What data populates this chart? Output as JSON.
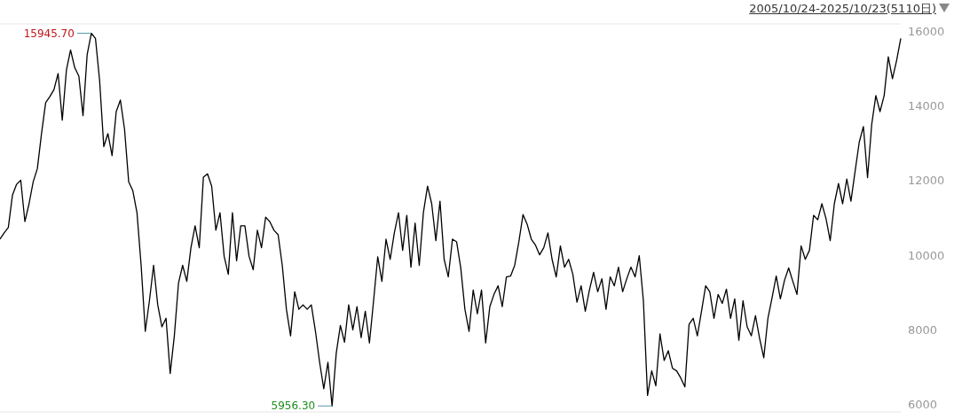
{
  "chart_data": {
    "type": "line",
    "title": "2005/10/24-2025/10/23(5110日)",
    "categories": [
      null,
      null,
      null,
      null,
      null,
      null,
      null,
      null,
      null,
      null,
      null,
      null,
      null,
      null,
      null,
      null,
      null,
      null,
      null,
      null,
      null,
      null,
      null,
      null,
      null,
      null,
      null,
      null,
      null,
      null,
      null,
      null,
      null,
      null,
      null,
      null,
      null,
      null,
      null,
      null,
      null,
      null,
      null,
      null,
      null,
      null,
      null,
      null,
      null,
      null,
      null,
      null,
      null,
      null,
      null,
      null,
      null,
      null,
      null,
      null,
      null,
      null,
      null,
      null,
      null,
      null,
      null,
      null,
      null,
      null,
      null,
      null,
      null,
      null,
      null,
      null,
      null,
      null,
      null,
      null,
      null,
      null,
      null,
      null,
      null,
      null,
      null,
      null,
      null,
      null,
      null,
      null,
      null,
      null,
      null,
      null,
      null,
      null,
      null,
      null,
      null,
      null,
      null,
      null,
      null,
      null,
      null,
      null,
      null,
      null,
      null,
      null,
      null,
      null,
      null,
      null,
      null,
      null,
      null,
      null,
      null,
      null,
      null,
      null,
      null,
      null,
      null,
      null,
      null,
      null,
      null,
      null,
      null,
      null,
      null,
      null,
      null,
      null,
      null,
      null,
      null,
      null,
      null,
      null,
      null,
      null,
      null,
      null,
      null,
      null,
      null,
      null,
      null,
      null,
      null,
      null,
      null,
      null,
      null,
      null,
      null,
      null,
      null,
      null,
      null,
      null,
      null,
      null,
      null,
      null,
      null,
      null,
      null,
      null,
      null,
      null,
      null,
      null,
      null,
      null,
      null,
      null,
      null,
      null,
      null,
      null,
      null,
      null,
      null,
      null,
      null,
      null,
      null,
      null,
      null,
      null,
      null,
      null,
      null,
      null,
      null,
      null,
      null,
      null,
      null,
      null,
      null,
      null,
      null,
      null,
      null,
      null,
      null,
      null,
      null,
      null,
      null,
      null
    ],
    "series": [
      {
        "color": "#000000",
        "values": [
          10430,
          10600,
          10740,
          11610,
          11900,
          12010,
          10900,
          11380,
          11970,
          12320,
          13260,
          14090,
          14250,
          14440,
          14870,
          13620,
          14960,
          15500,
          15030,
          14800,
          13740,
          15380,
          15950,
          15810,
          14680,
          12910,
          13260,
          12670,
          13850,
          14160,
          13380,
          11970,
          11730,
          11140,
          9730,
          7960,
          8780,
          9730,
          8670,
          8080,
          8310,
          6830,
          7840,
          9250,
          9730,
          9300,
          10200,
          10790,
          10200,
          12090,
          12180,
          11850,
          10670,
          11140,
          9970,
          9490,
          11140,
          9850,
          10790,
          10790,
          9970,
          9610,
          10670,
          10200,
          11020,
          10900,
          10670,
          10550,
          9730,
          8550,
          7840,
          9020,
          8550,
          8670,
          8550,
          8670,
          7960,
          7130,
          6420,
          7130,
          5960,
          7370,
          8120,
          7670,
          8670,
          8000,
          8620,
          7790,
          8500,
          7650,
          8780,
          9960,
          9300,
          10430,
          9890,
          10600,
          11140,
          10130,
          11070,
          9680,
          10860,
          9730,
          11140,
          11850,
          11380,
          10390,
          11450,
          9890,
          9420,
          10430,
          10360,
          9660,
          8550,
          7960,
          9070,
          8430,
          9070,
          7650,
          8620,
          8950,
          9180,
          8620,
          9420,
          9440,
          9730,
          10360,
          11090,
          10830,
          10430,
          10270,
          10010,
          10200,
          10600,
          9890,
          9420,
          10250,
          9680,
          9890,
          9490,
          8740,
          9180,
          8500,
          9070,
          9540,
          9020,
          9370,
          8550,
          9420,
          9180,
          9680,
          9020,
          9370,
          9680,
          9420,
          9990,
          8780,
          6240,
          6900,
          6500,
          7890,
          7180,
          7440,
          6970,
          6900,
          6710,
          6470,
          8150,
          8310,
          7840,
          8500,
          9180,
          9020,
          8310,
          8950,
          8710,
          9090,
          8310,
          8830,
          7720,
          8780,
          8080,
          7840,
          8380,
          7770,
          7250,
          8310,
          8860,
          9440,
          8830,
          9330,
          9660,
          9300,
          8950,
          10250,
          9890,
          10130,
          11070,
          10950,
          11380,
          10980,
          10390,
          11380,
          11920,
          11380,
          12040,
          11450,
          12250,
          13030,
          13450,
          12080,
          13500,
          14280,
          13850,
          14280,
          15320,
          14730,
          15220,
          15810
        ]
      }
    ],
    "ylim": [
      5800,
      16200
    ],
    "yticks": [
      6000,
      8000,
      10000,
      12000,
      14000,
      16000
    ],
    "annotations": [
      "15945.70",
      "5956.30"
    ],
    "grid": false,
    "legend": false,
    "marker": "none",
    "line_style": "solid"
  }
}
